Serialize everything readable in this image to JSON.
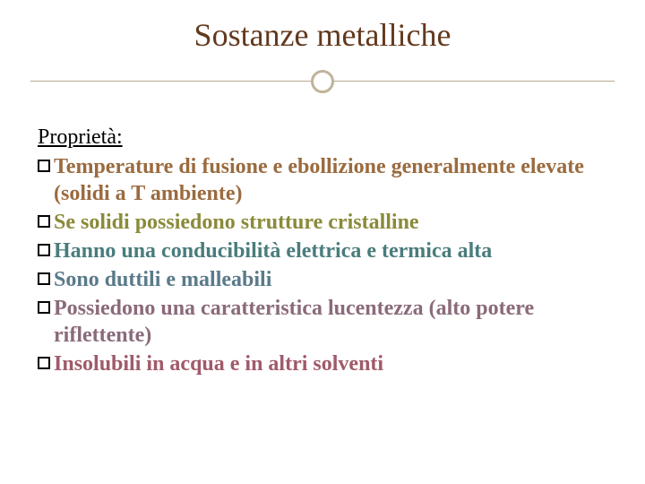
{
  "title": "Sostanze metalliche",
  "subtitle": "Proprietà:",
  "title_color": "#62391e",
  "rule_color": "#b9a98f",
  "ring_color": "#bfb49a",
  "items": [
    {
      "text": "Temperature di fusione e ebollizione generalmente elevate (solidi a T ambiente)",
      "color_class": "c-brown"
    },
    {
      "text": "Se solidi possiedono strutture cristalline",
      "color_class": "c-olive"
    },
    {
      "text": "Hanno una conducibilità elettrica e termica alta",
      "color_class": "c-teal"
    },
    {
      "text": "Sono duttili e malleabili",
      "color_class": "c-bluegr"
    },
    {
      "text": "Possiedono una caratteristica lucentezza (alto potere riflettente)",
      "color_class": "c-mauve"
    },
    {
      "text": "Insolubili in acqua e in altri solventi",
      "color_class": "c-rose"
    }
  ]
}
